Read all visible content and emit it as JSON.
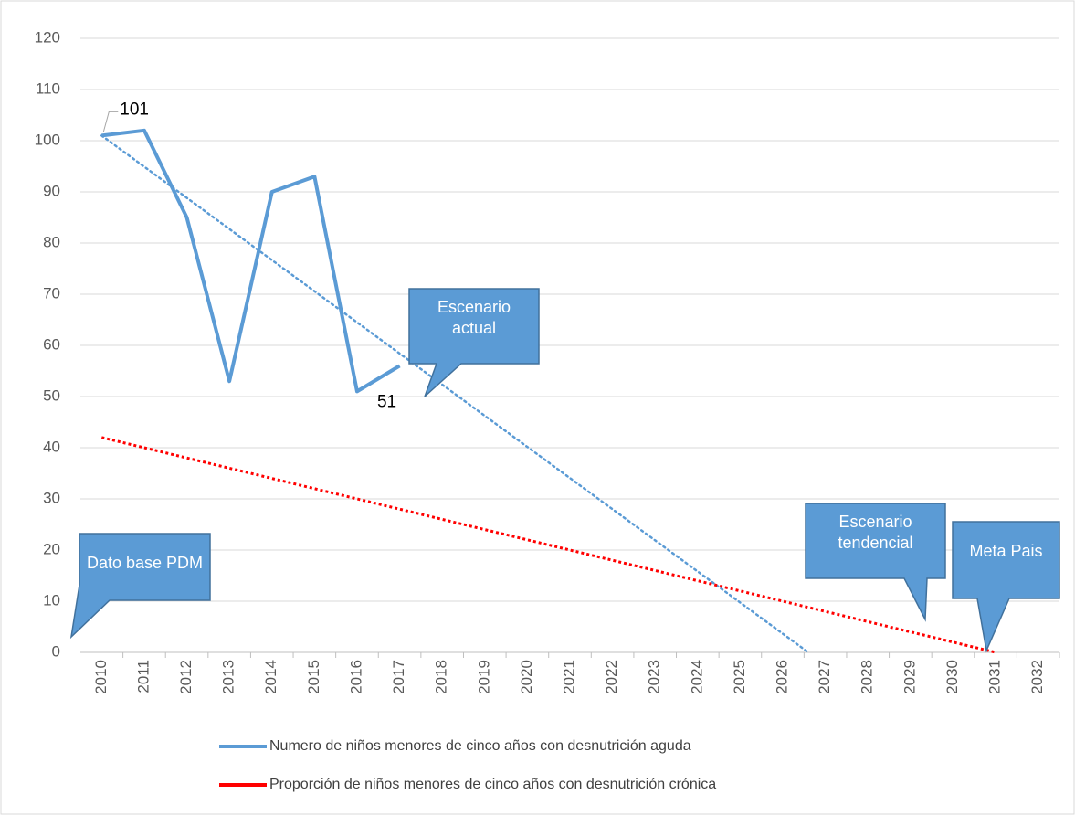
{
  "chart_data": {
    "type": "line",
    "categories": [
      "2010",
      "2011",
      "2012",
      "2013",
      "2014",
      "2015",
      "2016",
      "2017",
      "2018",
      "2019",
      "2020",
      "2021",
      "2022",
      "2023",
      "2024",
      "2025",
      "2026",
      "2027",
      "2028",
      "2029",
      "2030",
      "2031",
      "2032"
    ],
    "series": [
      {
        "name": "Numero de niños menores de cinco años con desnutrición aguda",
        "color": "#5b9bd5",
        "values": [
          101,
          102,
          85,
          53,
          90,
          93,
          51,
          56,
          null,
          null,
          null,
          null,
          null,
          null,
          null,
          null,
          null,
          null,
          null,
          null,
          null,
          null,
          null
        ]
      },
      {
        "name": "Proporción de niños menores de cinco años con desnutrición crónica",
        "color": "#ff0000",
        "dotted": true,
        "values": [
          42,
          40,
          38,
          36,
          34,
          32,
          30,
          28,
          26,
          24,
          22,
          20,
          18,
          16,
          14,
          12,
          10,
          8,
          6,
          4,
          2,
          0,
          null
        ]
      }
    ],
    "trendline": {
      "color": "#5b9bd5",
      "x": [
        2010,
        2026.6
      ],
      "values": [
        101,
        0
      ]
    },
    "labeled_points": [
      0,
      6
    ],
    "annotations": [
      "Escenario actual",
      "Dato base PDM",
      "Escenario tendencial",
      "Meta Pais"
    ],
    "ylim": [
      0,
      120
    ],
    "yticks": [
      0,
      10,
      20,
      30,
      40,
      50,
      60,
      70,
      80,
      90,
      100,
      110,
      120
    ],
    "grid": true
  }
}
